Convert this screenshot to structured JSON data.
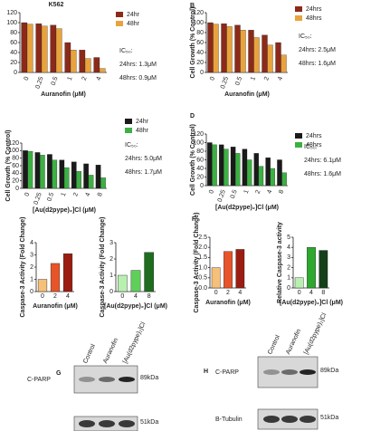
{
  "chart_data": [
    {
      "type": "bar",
      "title": "K562",
      "x_label": "Auranofin (μM)",
      "categories": [
        "0",
        "0.25",
        "0.5",
        "1",
        "2",
        "4"
      ],
      "series": [
        {
          "name": "24hr",
          "color": "#8b2a1a",
          "values": [
            100,
            98,
            95,
            60,
            45,
            30
          ]
        },
        {
          "name": "48hr",
          "color": "#e8a33e",
          "values": [
            97,
            93,
            88,
            45,
            28,
            8
          ]
        }
      ],
      "ylim": [
        0,
        120
      ],
      "yticks": [
        0,
        20,
        40,
        60,
        80,
        100,
        120
      ],
      "annotations": [
        "IC₅₀:",
        "24hrs: 1.3μM",
        "48hrs: 0.9μM"
      ]
    },
    {
      "type": "bar",
      "panel": "B",
      "x_label": "Auranofin (μM)",
      "y_label": "Cell Growth (% Control)",
      "categories": [
        "0",
        "0.25",
        "0.5",
        "1",
        "2",
        "4"
      ],
      "series": [
        {
          "name": "24hrs",
          "color": "#8b2a1a",
          "values": [
            100,
            98,
            95,
            85,
            75,
            60
          ]
        },
        {
          "name": "48hrs",
          "color": "#e8a33e",
          "values": [
            97,
            92,
            85,
            70,
            55,
            35
          ]
        }
      ],
      "ylim": [
        0,
        120
      ],
      "yticks": [
        0,
        20,
        40,
        60,
        80,
        100,
        120
      ],
      "annotations": [
        "IC₅₀:",
        "24hrs: 2.5μM",
        "48hrs: 1.6μM"
      ]
    },
    {
      "type": "bar",
      "x_label": "[Au(d2pype)₂]Cl (μM)",
      "y_label": "Cell Growth (% Control)",
      "categories": [
        "0",
        "0.25",
        "0.5",
        "1",
        "2",
        "4",
        "8"
      ],
      "series": [
        {
          "name": "24hr",
          "color": "#1a1a1a",
          "values": [
            100,
            95,
            90,
            75,
            70,
            65,
            62
          ]
        },
        {
          "name": "48hr",
          "color": "#3cb043",
          "values": [
            98,
            88,
            75,
            55,
            45,
            35,
            28
          ]
        }
      ],
      "ylim": [
        0,
        120
      ],
      "yticks": [
        0,
        20,
        40,
        60,
        80,
        100,
        120
      ],
      "annotations": [
        "IC₅₀:",
        "24hrs: 5.0μM",
        "48hrs: 1.7μM"
      ]
    },
    {
      "type": "bar",
      "panel": "D",
      "x_label": "[Au(d2pype)₂]Cl (μM)",
      "y_label": "Cell Growth (% Control)",
      "categories": [
        "0",
        "0.25",
        "0.5",
        "1",
        "2",
        "4",
        "8"
      ],
      "series": [
        {
          "name": "24hrs",
          "color": "#1a1a1a",
          "values": [
            100,
            95,
            90,
            85,
            75,
            65,
            60
          ]
        },
        {
          "name": "48hrs",
          "color": "#3cb043",
          "values": [
            95,
            85,
            75,
            60,
            45,
            40,
            30
          ]
        }
      ],
      "ylim": [
        0,
        120
      ],
      "yticks": [
        0,
        20,
        40,
        60,
        80,
        100,
        120
      ],
      "annotations": [
        "IC₅₀:",
        "24hrs: 6.1μM",
        "48hrs: 1.6μM"
      ]
    },
    {
      "type": "bar",
      "x_label": "Auranofin (μM)",
      "y_label": "Caspase-3 Activity (Fold Change)",
      "categories": [
        "0",
        "2",
        "4"
      ],
      "values": [
        1,
        2.3,
        3.1
      ],
      "colors": [
        "#f6c07a",
        "#e8542a",
        "#9b1d12"
      ],
      "ylim": [
        0,
        4
      ],
      "yticks": [
        0,
        1,
        2,
        3,
        4
      ]
    },
    {
      "type": "bar",
      "x_label": "[Au(d2pype)₂]Cl (μM)",
      "y_label": "Caspase-3 Activity (Fold Change)",
      "categories": [
        "0",
        "4",
        "8"
      ],
      "values": [
        1,
        1.3,
        2.4
      ],
      "colors": [
        "#b8f0b0",
        "#5fcf5a",
        "#1f6e1f"
      ],
      "ylim": [
        0,
        3
      ],
      "yticks": [
        0,
        1,
        2,
        3
      ]
    },
    {
      "type": "bar",
      "panel": "F",
      "x_label": "Auranofin (μM)",
      "y_label": "Caspase-3 Activity (Fold Change)",
      "categories": [
        "0",
        "2",
        "4"
      ],
      "values": [
        1,
        1.8,
        1.9
      ],
      "colors": [
        "#f6c07a",
        "#e8542a",
        "#9b1d12"
      ],
      "ylim": [
        0,
        2.5
      ],
      "yticks": [
        {
          "value": 0,
          "label": "0.0"
        },
        0.5,
        {
          "value": 1,
          "label": "1.0"
        },
        1.5,
        {
          "value": 2,
          "label": "2.0"
        },
        2.5
      ]
    },
    {
      "type": "bar",
      "x_label": "[Au(d2pype)₂]Cl (μM)",
      "y_label": "Relative Caspase-3 activity",
      "categories": [
        "0",
        "4",
        "8"
      ],
      "values": [
        1,
        4,
        3.7
      ],
      "colors": [
        "#b8f0b0",
        "#2fa82f",
        "#16401a"
      ],
      "ylim": [
        0,
        5
      ],
      "yticks": [
        0,
        1,
        2,
        3,
        4,
        5
      ]
    }
  ],
  "blots": [
    {
      "panel": "G",
      "lanes": [
        "Control",
        "Auranofin",
        "[Au(d2pype)₂]Cl"
      ],
      "rows": [
        {
          "protein": "C-PARP",
          "size": "89kDa"
        },
        {
          "size": "51kDa"
        }
      ]
    },
    {
      "panel": "H",
      "lanes": [
        "Control",
        "Auranofin",
        "[Au(d2pype)₂]Cl"
      ],
      "rows": [
        {
          "protein": "C-PARP",
          "size": "89kDa"
        },
        {
          "protein": "B-Tubulin",
          "size": "51kDa"
        }
      ]
    }
  ]
}
